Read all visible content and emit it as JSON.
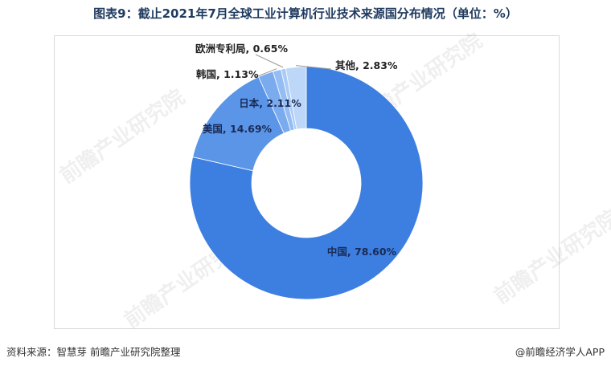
{
  "title": "图表9：截止2021年7月全球工业计算机行业技术来源国分布情况（单位：%）",
  "source": "资料来源：智慧芽 前瞻产业研究院整理",
  "brand": "@前瞻经济学人APP",
  "watermark": "前瞻产业研究院",
  "colors": {
    "china": "#3d7fe0",
    "usa": "#5b95e8",
    "japan": "#7aabef",
    "korea": "#93bdf3",
    "eu": "#a9cbf6",
    "other": "#bdd7f8"
  },
  "chart_data": {
    "type": "pie",
    "donut": true,
    "title": "图表9：截止2021年7月全球工业计算机行业技术来源国分布情况（单位：%）",
    "categories": [
      "中国",
      "美国",
      "日本",
      "韩国",
      "欧洲专利局",
      "其他"
    ],
    "values": [
      78.6,
      14.69,
      2.11,
      1.13,
      0.65,
      2.83
    ],
    "labels": [
      "中国, 78.60%",
      "美国, 14.69%",
      "日本, 2.11%",
      "韩国, 1.13%",
      "欧洲专利局, 0.65%",
      "其他, 2.83%"
    ]
  }
}
